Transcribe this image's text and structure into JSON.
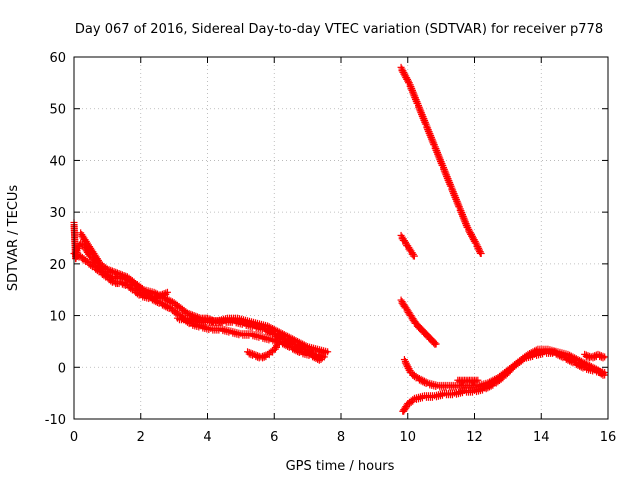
{
  "chart_data": {
    "type": "scatter",
    "title": "Day 067 of 2016, Sidereal Day-to-day VTEC variation (SDTVAR) for receiver p778",
    "xlabel": "GPS time / hours",
    "ylabel": "SDTVAR / TECUs",
    "xlim": [
      0,
      16
    ],
    "ylim": [
      -10,
      60
    ],
    "x_ticks": [
      0,
      2,
      4,
      6,
      8,
      10,
      12,
      14,
      16
    ],
    "y_ticks": [
      -10,
      0,
      10,
      20,
      30,
      40,
      50,
      60
    ],
    "grid": true,
    "marker": "plus",
    "color": "#ff0000",
    "series": [
      {
        "x": [
          0.0,
          0.05,
          0.1,
          0.2,
          0.3,
          0.5,
          0.7,
          0.9,
          1.1,
          1.3,
          1.5,
          1.7,
          1.9,
          2.1,
          2.4,
          2.7,
          3.0,
          3.2,
          3.4,
          3.6,
          3.8,
          4.0,
          4.2,
          4.5,
          4.8,
          5.1,
          5.4,
          5.7,
          6.0,
          6.3,
          6.6,
          6.9,
          7.2,
          7.5
        ],
        "y": [
          28,
          21,
          23,
          24,
          23.5,
          21.5,
          20,
          18.5,
          17.5,
          17.5,
          17.5,
          16.5,
          16,
          15,
          14.5,
          13.5,
          12.5,
          11.5,
          10.5,
          10,
          9.5,
          9.5,
          9,
          9,
          9,
          8.5,
          8,
          7.5,
          6.5,
          5.5,
          4.5,
          3.5,
          2.5,
          2
        ]
      },
      {
        "x": [
          0.0,
          0.2,
          0.4,
          0.6,
          0.8,
          1.0,
          1.2,
          1.4,
          1.6,
          1.8,
          2.0,
          2.3,
          2.6,
          2.9,
          3.2,
          3.5,
          3.8,
          4.1,
          4.4,
          4.7,
          5.0,
          5.3,
          5.6,
          5.9,
          6.2,
          6.5,
          6.8,
          7.1,
          7.4
        ],
        "y": [
          22,
          21.5,
          20.5,
          19.5,
          18.5,
          17.5,
          16.5,
          16.5,
          16,
          15,
          14,
          13.5,
          12.5,
          11.5,
          10,
          8.5,
          8,
          7.5,
          7.5,
          7,
          6.5,
          6.5,
          6,
          5.5,
          5,
          4,
          3,
          2.5,
          1.5
        ]
      },
      {
        "x": [
          0.2,
          0.4,
          0.6,
          0.8,
          1.0,
          1.2,
          1.4,
          1.6,
          1.8,
          2.0,
          2.2,
          2.4,
          2.6,
          2.8
        ],
        "y": [
          26,
          24,
          22,
          20,
          19,
          18.5,
          18,
          17.5,
          16.5,
          15,
          14,
          13.5,
          14,
          14.5
        ]
      },
      {
        "x": [
          3.1,
          3.4,
          3.7,
          4.0,
          4.3,
          4.6,
          4.9,
          5.2,
          5.5,
          5.8,
          6.1,
          6.4,
          6.7,
          7.0,
          7.3,
          7.6
        ],
        "y": [
          9.5,
          9.5,
          9,
          9,
          9,
          9.5,
          9.5,
          9,
          8.5,
          8,
          7,
          6,
          5,
          4,
          3.5,
          3
        ]
      },
      {
        "x": [
          5.2,
          5.4,
          5.6,
          5.8,
          5.9,
          6.0,
          6.1,
          6.2
        ],
        "y": [
          3,
          2.5,
          2,
          2.5,
          3,
          3.5,
          4.5,
          5
        ]
      },
      {
        "x": [
          9.8,
          10.05,
          10.3,
          10.55,
          10.8,
          11.05,
          11.3,
          11.55,
          11.8,
          12.05,
          12.2
        ],
        "y": [
          58,
          55,
          51,
          47,
          43,
          39,
          35,
          31,
          27,
          24,
          22
        ]
      },
      {
        "x": [
          9.8,
          9.9,
          10.0,
          10.1,
          10.2
        ],
        "y": [
          25.5,
          24.5,
          23.5,
          22.5,
          21.5
        ]
      },
      {
        "x": [
          9.8,
          9.95,
          10.1,
          10.25,
          10.4,
          10.55,
          10.7,
          10.85
        ],
        "y": [
          13,
          11.5,
          10,
          8.5,
          7.5,
          6.5,
          5.5,
          4.5
        ]
      },
      {
        "x": [
          9.9,
          10.1,
          10.3,
          10.6,
          10.9,
          11.2,
          11.5,
          11.8,
          12.1,
          12.4,
          12.7,
          13.0,
          13.3,
          13.6,
          13.9,
          14.2,
          14.5,
          14.8,
          15.1,
          15.4,
          15.7,
          15.9
        ],
        "y": [
          1.5,
          -1,
          -2,
          -3,
          -3.5,
          -3.5,
          -3.5,
          -3.5,
          -3.5,
          -3,
          -2,
          -0.5,
          1,
          2.5,
          3.5,
          3.5,
          3,
          2.5,
          1.5,
          0.5,
          -0.5,
          -1.5
        ]
      },
      {
        "x": [
          9.85,
          10.0,
          10.2,
          10.5,
          10.8,
          11.1,
          11.4,
          11.7,
          12.0,
          12.3,
          12.6,
          12.9,
          13.2,
          13.5,
          13.8,
          14.1,
          14.4,
          14.7,
          15.0,
          15.3,
          15.6,
          15.9
        ],
        "y": [
          -8.5,
          -7,
          -6,
          -5.5,
          -5.5,
          -5,
          -5,
          -4.5,
          -4.5,
          -4,
          -3,
          -1.5,
          0.5,
          2,
          2.5,
          3,
          3,
          2,
          1,
          0,
          -0.5,
          -1
        ]
      },
      {
        "x": [
          11.5,
          11.7,
          11.9,
          12.1
        ],
        "y": [
          -2.5,
          -2.5,
          -2.5,
          -2.5
        ]
      },
      {
        "x": [
          15.3,
          15.5,
          15.7,
          15.9
        ],
        "y": [
          2.5,
          2,
          2.5,
          2
        ]
      }
    ]
  }
}
